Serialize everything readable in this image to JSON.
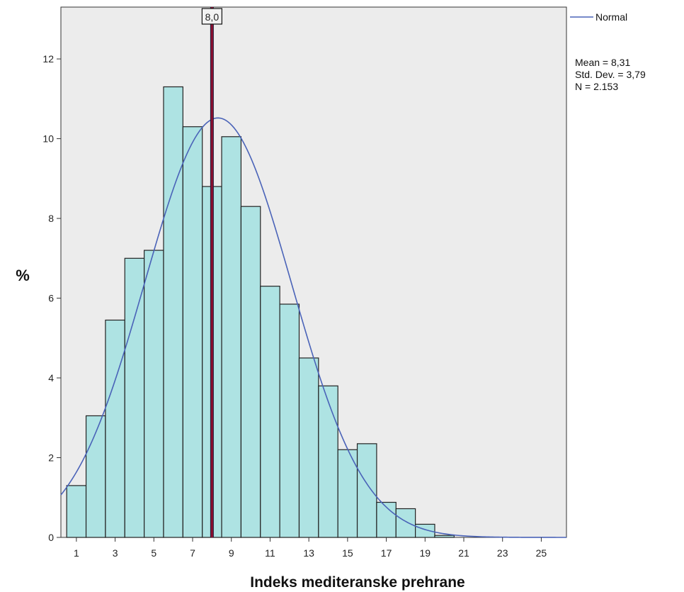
{
  "chart_data": {
    "type": "bar",
    "subtype": "histogram",
    "bin_width": 1,
    "bins": [
      1,
      2,
      3,
      4,
      5,
      6,
      7,
      8,
      9,
      10,
      11,
      12,
      13,
      14,
      15,
      16,
      17,
      18,
      19,
      20
    ],
    "values": [
      1.3,
      3.05,
      5.45,
      7.0,
      7.2,
      11.3,
      10.3,
      8.8,
      10.05,
      8.3,
      6.3,
      5.85,
      4.5,
      3.8,
      2.2,
      2.35,
      0.88,
      0.72,
      0.33,
      0.05
    ],
    "x_ticks": [
      "1",
      "3",
      "5",
      "7",
      "9",
      "11",
      "13",
      "15",
      "17",
      "19",
      "21",
      "23",
      "25"
    ],
    "y_ticks": [
      "0",
      "2",
      "4",
      "6",
      "8",
      "10",
      "12"
    ],
    "xlim": [
      0.2,
      26.3
    ],
    "ylim": [
      0,
      13.3
    ],
    "xlabel": "Indeks mediteranske prehrane",
    "ylabel": "%",
    "grid": false,
    "bar_fill": "#aee3e3",
    "bar_stroke": "#222222",
    "plot_background": "#ececec",
    "normal_curve": {
      "name": "Normal",
      "mean": 8.31,
      "std_dev": 3.79,
      "peak_percent": 10.52,
      "color": "#4a63b8"
    },
    "reference_line": {
      "x": 8.0,
      "label": "8,0",
      "color": "#8b1030"
    },
    "legend": {
      "placement": "right",
      "series_label": "Normal",
      "stats": [
        "Mean = 8,31",
        "Std. Dev. = 3,79",
        "N = 2.153"
      ]
    }
  }
}
